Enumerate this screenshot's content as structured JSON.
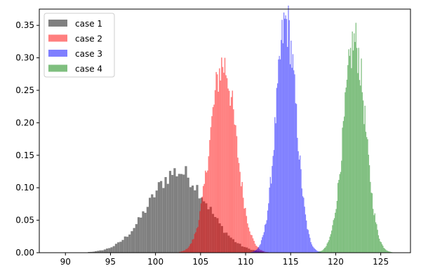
{
  "chart_data": {
    "type": "histogram",
    "title": "",
    "xlabel": "",
    "ylabel": "",
    "xlim": [
      87.1,
      128.3
    ],
    "ylim": [
      0,
      0.375
    ],
    "x_ticks": [
      90,
      95,
      100,
      105,
      110,
      115,
      120,
      125
    ],
    "y_ticks": [
      0.0,
      0.05,
      0.1,
      0.15,
      0.2,
      0.25,
      0.3,
      0.35
    ],
    "y_tick_labels": [
      "0.00",
      "0.05",
      "0.10",
      "0.15",
      "0.20",
      "0.25",
      "0.30",
      "0.35"
    ],
    "grid": false,
    "legend_position": "top-left",
    "density": true,
    "series": [
      {
        "name": "case 1",
        "color": "#808080",
        "opacity": 1.0,
        "mean": 102.5,
        "std": 3.2,
        "range": [
          89,
          112
        ],
        "bin_width": 0.25,
        "peak": 0.125
      },
      {
        "name": "case 2",
        "color": "#ff0000",
        "opacity": 0.5,
        "mean": 107.5,
        "std": 1.45,
        "range": [
          102,
          113
        ],
        "bin_width": 0.12,
        "peak": 0.29
      },
      {
        "name": "case 3",
        "color": "#0000ff",
        "opacity": 0.5,
        "mean": 114.5,
        "std": 1.12,
        "range": [
          109.5,
          119
        ],
        "bin_width": 0.1,
        "peak": 0.355
      },
      {
        "name": "case 4",
        "color": "#008000",
        "opacity": 0.5,
        "mean": 122.1,
        "std": 1.2,
        "range": [
          117,
          127
        ],
        "bin_width": 0.1,
        "peak": 0.325
      }
    ]
  }
}
